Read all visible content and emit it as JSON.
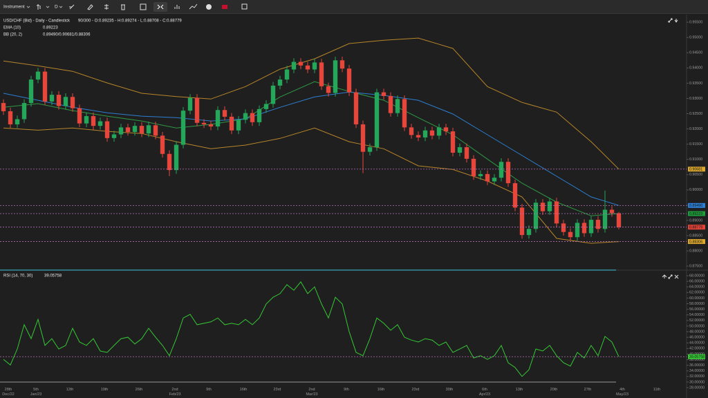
{
  "toolbar": {
    "instrument": "Instrument",
    "period": "D"
  },
  "chart_data": [
    {
      "type": "candlestick",
      "title": "USD/CHF (Bid) - Daily - Candlestick",
      "subtitle": "90/300 - O:0.89235 - H:0.89274 - L:0.88708 - C:0.88779",
      "up_color": "#26a65b",
      "down_color": "#e5473c",
      "open": [
        0.9285,
        0.9258,
        0.9215,
        0.9232,
        0.9285,
        0.9362,
        0.9388,
        0.929,
        0.9312,
        0.9275,
        0.9305,
        0.9268,
        0.9218,
        0.9242,
        0.921,
        0.9225,
        0.917,
        0.9182,
        0.9205,
        0.919,
        0.921,
        0.9185,
        0.9212,
        0.9178,
        0.9118,
        0.9065,
        0.9148,
        0.926,
        0.9302,
        0.922,
        0.9215,
        0.9208,
        0.9262,
        0.924,
        0.9195,
        0.923,
        0.9252,
        0.9222,
        0.9265,
        0.9282,
        0.9342,
        0.9362,
        0.9395,
        0.942,
        0.9408,
        0.9395,
        0.9418,
        0.934,
        0.9318,
        0.9425,
        0.9398,
        0.932,
        0.9215,
        0.9125,
        0.914,
        0.932,
        0.9308,
        0.9252,
        0.9298,
        0.9205,
        0.918,
        0.9172,
        0.9195,
        0.9178,
        0.9205,
        0.9192,
        0.9122,
        0.914,
        0.9102,
        0.9045,
        0.9052,
        0.9028,
        0.904,
        0.9092,
        0.9022,
        0.8942,
        0.8852,
        0.8872,
        0.8958,
        0.893,
        0.8962,
        0.889,
        0.8862,
        0.8845,
        0.8892,
        0.8858,
        0.8902,
        0.8872,
        0.8935,
        0.89235
      ],
      "high": [
        0.9297,
        0.927,
        0.9244,
        0.9297,
        0.9374,
        0.94,
        0.94,
        0.9324,
        0.9324,
        0.9317,
        0.9317,
        0.928,
        0.9254,
        0.9254,
        0.9237,
        0.9237,
        0.9194,
        0.9217,
        0.9217,
        0.9222,
        0.9222,
        0.9224,
        0.9224,
        0.919,
        0.913,
        0.916,
        0.9272,
        0.9314,
        0.9314,
        0.9232,
        0.9227,
        0.9274,
        0.9274,
        0.9252,
        0.9242,
        0.9264,
        0.9264,
        0.9277,
        0.9294,
        0.9354,
        0.9374,
        0.9407,
        0.9432,
        0.9432,
        0.942,
        0.943,
        0.943,
        0.9352,
        0.9437,
        0.9437,
        0.941,
        0.9332,
        0.9227,
        0.9152,
        0.9332,
        0.9332,
        0.932,
        0.931,
        0.931,
        0.9217,
        0.9192,
        0.9207,
        0.9207,
        0.9217,
        0.9217,
        0.9204,
        0.9152,
        0.9152,
        0.9114,
        0.9064,
        0.9064,
        0.9052,
        0.9104,
        0.9104,
        0.9034,
        0.8954,
        0.8884,
        0.897,
        0.897,
        0.8974,
        0.8974,
        0.8902,
        0.8874,
        0.8904,
        0.8904,
        0.8914,
        0.8914,
        0.8998,
        0.8947,
        0.89274
      ],
      "low": [
        0.9246,
        0.9203,
        0.9203,
        0.922,
        0.9273,
        0.935,
        0.9278,
        0.9278,
        0.9263,
        0.9263,
        0.9256,
        0.9206,
        0.9206,
        0.9198,
        0.9198,
        0.9158,
        0.9158,
        0.917,
        0.9178,
        0.9178,
        0.9173,
        0.9173,
        0.9166,
        0.9106,
        0.9045,
        0.9053,
        0.9136,
        0.9248,
        0.9208,
        0.9203,
        0.9196,
        0.9196,
        0.9228,
        0.9183,
        0.9183,
        0.9218,
        0.921,
        0.921,
        0.9253,
        0.927,
        0.933,
        0.935,
        0.9383,
        0.9396,
        0.9383,
        0.9383,
        0.9328,
        0.9306,
        0.9306,
        0.9386,
        0.9308,
        0.9203,
        0.9055,
        0.9113,
        0.9128,
        0.9296,
        0.924,
        0.924,
        0.9193,
        0.9168,
        0.916,
        0.916,
        0.9166,
        0.9166,
        0.918,
        0.911,
        0.911,
        0.909,
        0.9033,
        0.9033,
        0.9016,
        0.9016,
        0.9028,
        0.901,
        0.893,
        0.884,
        0.884,
        0.886,
        0.8918,
        0.8918,
        0.8878,
        0.885,
        0.8833,
        0.8833,
        0.8846,
        0.8846,
        0.886,
        0.886,
        0.8912,
        0.88708
      ],
      "close": [
        0.9258,
        0.9215,
        0.9232,
        0.9285,
        0.9362,
        0.9388,
        0.929,
        0.9312,
        0.9275,
        0.9305,
        0.9268,
        0.9218,
        0.9242,
        0.921,
        0.9225,
        0.917,
        0.9182,
        0.9205,
        0.919,
        0.921,
        0.9185,
        0.9212,
        0.9178,
        0.9118,
        0.9065,
        0.9148,
        0.926,
        0.9302,
        0.922,
        0.9215,
        0.9208,
        0.9262,
        0.924,
        0.9195,
        0.923,
        0.9252,
        0.9222,
        0.9265,
        0.9282,
        0.9342,
        0.9362,
        0.9395,
        0.942,
        0.9408,
        0.9395,
        0.9418,
        0.934,
        0.9318,
        0.9425,
        0.9398,
        0.932,
        0.9215,
        0.9125,
        0.914,
        0.932,
        0.9308,
        0.9252,
        0.9298,
        0.9205,
        0.918,
        0.9172,
        0.9195,
        0.9178,
        0.9205,
        0.9192,
        0.9122,
        0.914,
        0.9102,
        0.9045,
        0.9052,
        0.9028,
        0.904,
        0.9092,
        0.9022,
        0.8942,
        0.8852,
        0.8872,
        0.8958,
        0.893,
        0.8962,
        0.889,
        0.8862,
        0.8845,
        0.8892,
        0.8858,
        0.8902,
        0.8872,
        0.8935,
        0.89235,
        0.88779
      ],
      "indicators": [
        {
          "name": "EMA (10)",
          "readout": "0.89223",
          "x": [
            0,
            5,
            10,
            15,
            20,
            25,
            30,
            35,
            40,
            45,
            50,
            55,
            60,
            65,
            70,
            75,
            80,
            85,
            89
          ],
          "lines": [
            {
              "color": "#2f9a45",
              "values": [
                0.9271,
                0.9283,
                0.926,
                0.9242,
                0.9226,
                0.9203,
                0.9215,
                0.9233,
                0.9305,
                0.9355,
                0.9323,
                0.9294,
                0.9237,
                0.9181,
                0.9101,
                0.9022,
                0.896,
                0.8915,
                0.89223
              ]
            }
          ]
        },
        {
          "name": "BB (20, 2)",
          "readout": "0.89490/0.90681/0.88306",
          "x": [
            0,
            5,
            10,
            15,
            20,
            25,
            30,
            35,
            40,
            45,
            50,
            55,
            60,
            65,
            70,
            75,
            80,
            85,
            89
          ],
          "lines": [
            {
              "color": "#2d7fd3",
              "values": [
                0.9317,
                0.9294,
                0.9271,
                0.9253,
                0.9242,
                0.9237,
                0.9226,
                0.9233,
                0.9271,
                0.9305,
                0.9321,
                0.931,
                0.9294,
                0.9249,
                0.9181,
                0.9113,
                0.9045,
                0.8977,
                0.8949
              ]
            },
            {
              "color": "#b8862a",
              "values": [
                0.9423,
                0.9407,
                0.9389,
                0.9351,
                0.9317,
                0.9306,
                0.9298,
                0.9339,
                0.9396,
                0.943,
                0.948,
                0.9491,
                0.9498,
                0.9464,
                0.9339,
                0.9287,
                0.9255,
                0.9158,
                0.90681
              ]
            },
            {
              "color": "#b8862a",
              "values": [
                0.9203,
                0.9196,
                0.9203,
                0.9192,
                0.9185,
                0.9158,
                0.9135,
                0.9147,
                0.9169,
                0.9203,
                0.9158,
                0.9135,
                0.9079,
                0.9067,
                0.9029,
                0.8977,
                0.8841,
                0.8825,
                0.88306
              ]
            }
          ]
        }
      ],
      "price_labels": [
        {
          "value": 0.90681,
          "label": "0.90681",
          "color": "#d9a62e"
        },
        {
          "value": 0.8949,
          "label": "0.89490",
          "color": "#2d7fd3"
        },
        {
          "value": 0.89223,
          "label": "0.89223",
          "color": "#1f9d3a"
        },
        {
          "value": 0.88779,
          "label": "0.88779",
          "color": "#e0443a"
        },
        {
          "value": 0.88306,
          "label": "0.88306",
          "color": "#d9a62e"
        }
      ],
      "xlim": [
        -0.5,
        98.8
      ],
      "ylim": [
        0.8739,
        0.9573
      ],
      "yticks": [
        {
          "value": 0.955,
          "label": "0.95500"
        },
        {
          "value": 0.95,
          "label": "0.95000"
        },
        {
          "value": 0.945,
          "label": "0.94500"
        },
        {
          "value": 0.94,
          "label": "0.94000"
        },
        {
          "value": 0.935,
          "label": "0.93500"
        },
        {
          "value": 0.93,
          "label": "0.93000"
        },
        {
          "value": 0.925,
          "label": "0.92500"
        },
        {
          "value": 0.92,
          "label": "0.92000"
        },
        {
          "value": 0.915,
          "label": "0.91500"
        },
        {
          "value": 0.91,
          "label": "0.91000"
        },
        {
          "value": 0.905,
          "label": "0.90500"
        },
        {
          "value": 0.9,
          "label": "0.90000"
        },
        {
          "value": 0.895,
          "label": "0.89500"
        },
        {
          "value": 0.89,
          "label": "0.89000"
        },
        {
          "value": 0.885,
          "label": "0.88500"
        },
        {
          "value": 0.88,
          "label": "0.88000"
        },
        {
          "value": 0.875,
          "label": "0.87500"
        }
      ]
    },
    {
      "type": "line",
      "title": "RSI (14, 70, 30)",
      "readout": "39.05758",
      "color": "#35c935",
      "values": [
        38.1,
        36.1,
        41.8,
        50.5,
        45.5,
        52.4,
        43.1,
        45.5,
        41.8,
        43.1,
        49.2,
        44.3,
        43.1,
        45.5,
        41.1,
        40.6,
        43.1,
        45.5,
        46.0,
        43.6,
        45.5,
        49.2,
        46.0,
        43.1,
        39.4,
        45.5,
        52.9,
        54.2,
        50.5,
        51.0,
        51.5,
        52.9,
        50.5,
        51.0,
        50.5,
        52.4,
        50.5,
        52.9,
        57.9,
        60.3,
        61.6,
        64.8,
        62.8,
        65.8,
        61.6,
        64.0,
        57.9,
        52.9,
        60.3,
        57.9,
        48.0,
        40.6,
        39.4,
        45.5,
        52.9,
        51.0,
        48.5,
        50.5,
        46.0,
        45.0,
        44.3,
        45.5,
        45.0,
        43.1,
        44.3,
        40.6,
        41.8,
        43.1,
        38.6,
        39.4,
        38.1,
        39.4,
        43.1,
        36.9,
        35.2,
        32.0,
        34.4,
        41.8,
        41.1,
        43.1,
        39.4,
        36.9,
        35.7,
        40.6,
        38.6,
        43.1,
        39.4,
        46.3,
        44.3,
        39.05758
      ],
      "levels": [
        {
          "value": 70,
          "color": "#3aa6b9"
        },
        {
          "value": 30,
          "color": "#8a8a8a"
        }
      ],
      "price_labels": [
        {
          "value": 39.05758,
          "label": "39.05758",
          "color": "#35c935"
        }
      ],
      "xlim": [
        -0.5,
        98.8
      ],
      "xticks": [
        {
          "value": 0.7,
          "label": "28th\nDec/22"
        },
        {
          "value": 4.7,
          "label": "5th\nJan/23"
        },
        {
          "value": 9.6,
          "label": "12th"
        },
        {
          "value": 14.6,
          "label": "19th"
        },
        {
          "value": 19.6,
          "label": "26th"
        },
        {
          "value": 24.8,
          "label": "2nd\nFeb/23"
        },
        {
          "value": 29.7,
          "label": "9th"
        },
        {
          "value": 34.7,
          "label": "16th"
        },
        {
          "value": 39.6,
          "label": "23rd"
        },
        {
          "value": 44.6,
          "label": "2nd\nMar/23"
        },
        {
          "value": 49.6,
          "label": "9th"
        },
        {
          "value": 54.6,
          "label": "16th"
        },
        {
          "value": 59.6,
          "label": "23rd"
        },
        {
          "value": 64.5,
          "label": "30th"
        },
        {
          "value": 69.6,
          "label": "6th\nApr/23"
        },
        {
          "value": 74.6,
          "label": "13th"
        },
        {
          "value": 79.6,
          "label": "20th"
        },
        {
          "value": 84.5,
          "label": "27th"
        },
        {
          "value": 89.5,
          "label": "4th\nMay/23"
        },
        {
          "value": 94.5,
          "label": "11th"
        }
      ],
      "ylim": [
        26.77,
        70.22
      ],
      "yticks": [
        {
          "value": 68,
          "label": "68.00000"
        },
        {
          "value": 66,
          "label": "66.00000"
        },
        {
          "value": 64,
          "label": "64.00000"
        },
        {
          "value": 62,
          "label": "62.00000"
        },
        {
          "value": 60,
          "label": "60.00000"
        },
        {
          "value": 58,
          "label": "58.00000"
        },
        {
          "value": 56,
          "label": "56.00000"
        },
        {
          "value": 54,
          "label": "54.00000"
        },
        {
          "value": 52,
          "label": "52.00000"
        },
        {
          "value": 50,
          "label": "50.00000"
        },
        {
          "value": 48,
          "label": "48.00000"
        },
        {
          "value": 46,
          "label": "46.00000"
        },
        {
          "value": 44,
          "label": "44.00000"
        },
        {
          "value": 42,
          "label": "42.00000"
        },
        {
          "value": 40,
          "label": "40.00000"
        },
        {
          "value": 38,
          "label": "38.00000"
        },
        {
          "value": 36,
          "label": "36.00000"
        },
        {
          "value": 34,
          "label": "34.00000"
        },
        {
          "value": 32,
          "label": "32.00000"
        },
        {
          "value": 30,
          "label": "30.00000"
        },
        {
          "value": 28,
          "label": "28.00000"
        }
      ]
    }
  ]
}
